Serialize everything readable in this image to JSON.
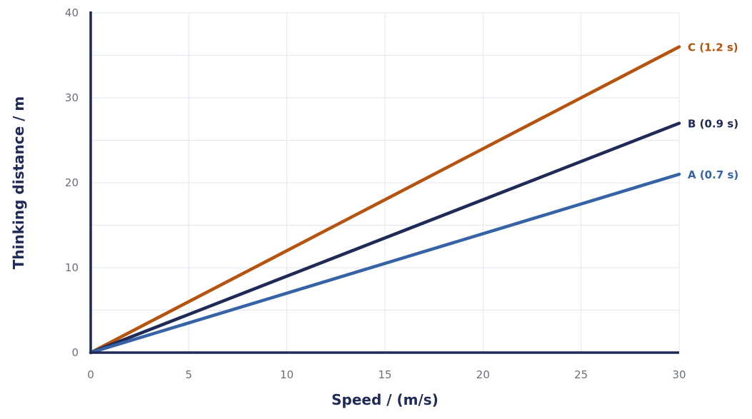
{
  "chart_data": {
    "type": "line",
    "xlabel": "Speed / (m/s)",
    "ylabel": "Thinking distance / m",
    "xlim": [
      0,
      30
    ],
    "ylim": [
      0,
      40
    ],
    "xticks": [
      0,
      5,
      10,
      15,
      20,
      25,
      30
    ],
    "yticks": [
      0,
      10,
      20,
      30,
      40
    ],
    "grid": true,
    "series": [
      {
        "name": "C (1.2 s)",
        "x": [
          0,
          30
        ],
        "y": [
          0,
          36
        ],
        "color": "#b5530f"
      },
      {
        "name": "B (0.9 s)",
        "x": [
          0,
          30
        ],
        "y": [
          0,
          27
        ],
        "color": "#1f2a56"
      },
      {
        "name": "A (0.7 s)",
        "x": [
          0,
          30
        ],
        "y": [
          0,
          21
        ],
        "color": "#3563a6"
      }
    ]
  }
}
